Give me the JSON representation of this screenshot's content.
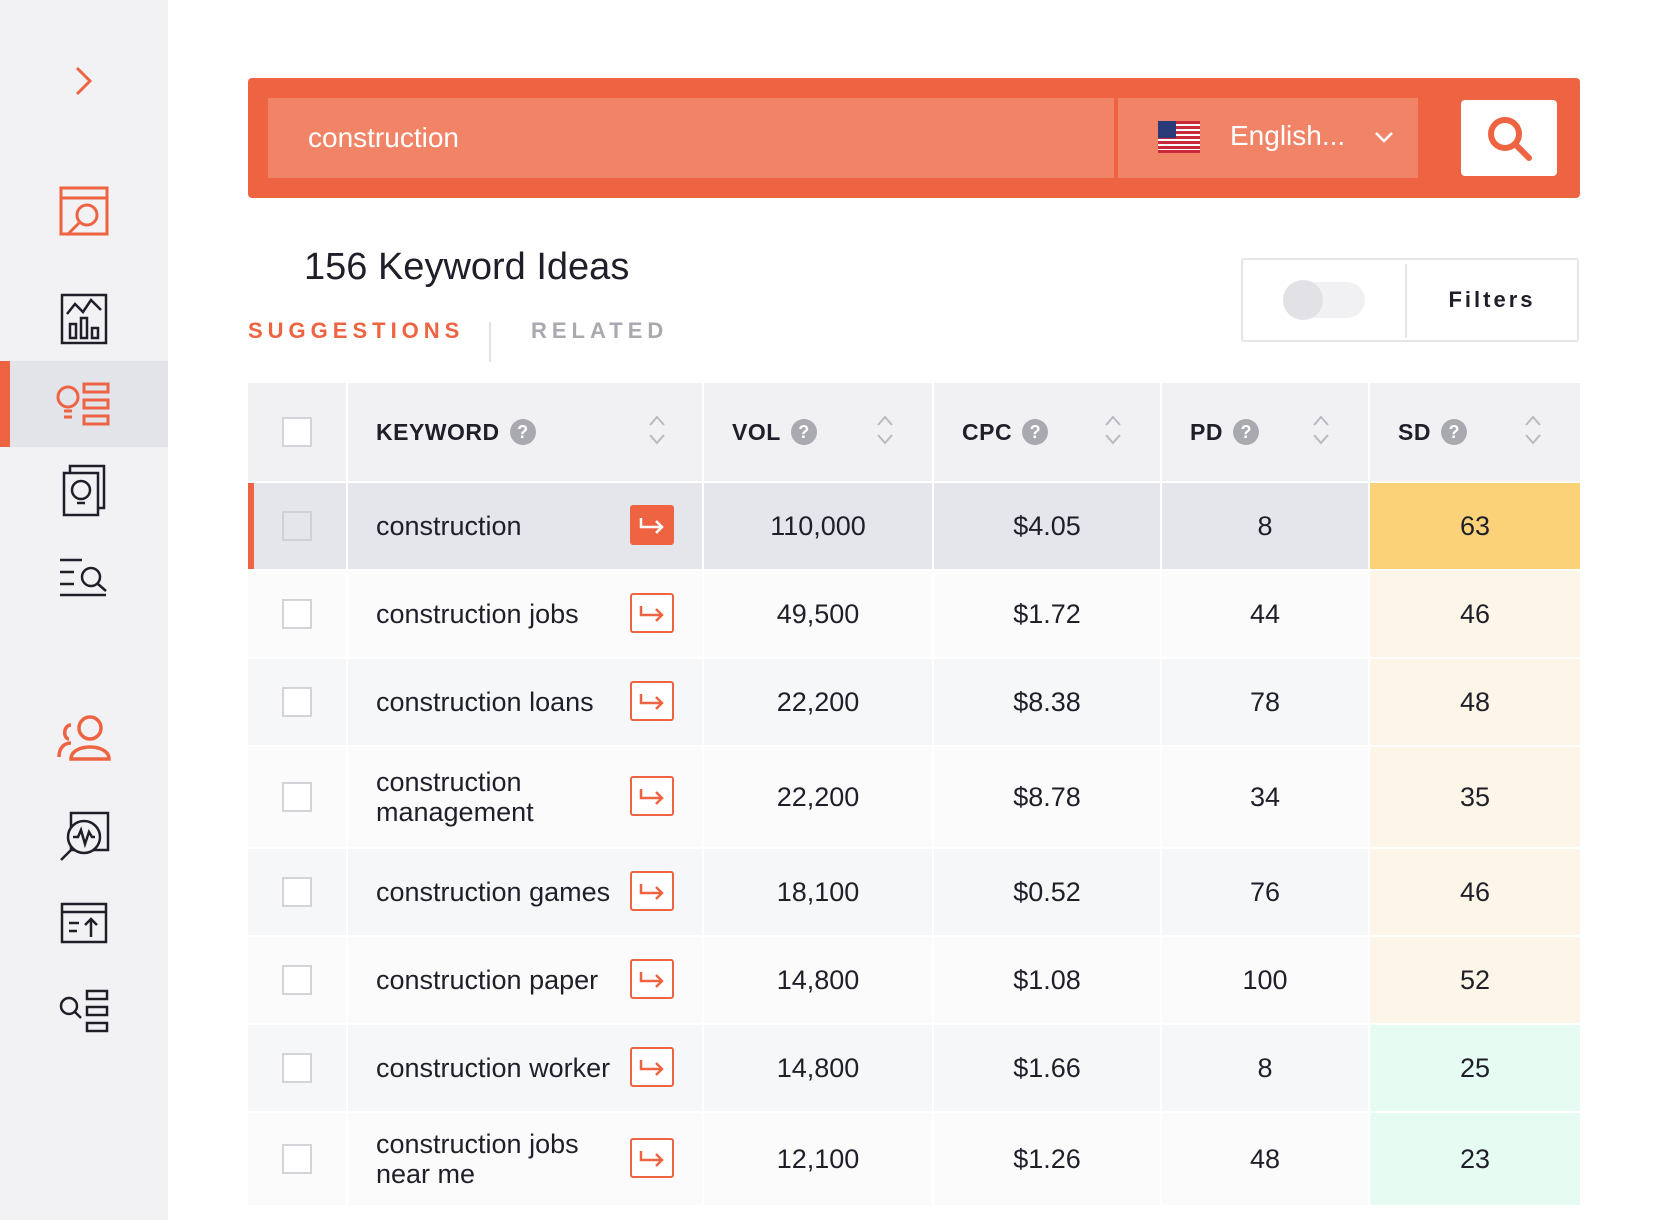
{
  "sidebar": {
    "expand_icon": "chevron-right-icon",
    "items": [
      {
        "name": "serp-analyzer",
        "icon": "browser-search-icon",
        "active": false
      },
      {
        "name": "analytics",
        "icon": "bar-chart-icon",
        "active": false
      },
      {
        "name": "keyword-ideas",
        "icon": "lightbulb-list-icon",
        "active": true
      },
      {
        "name": "content-ideas",
        "icon": "lightbulb-page-icon",
        "active": false
      },
      {
        "name": "keyword-search",
        "icon": "list-search-icon",
        "active": false
      },
      {
        "name": "account",
        "icon": "users-icon",
        "active": false
      },
      {
        "name": "site-audit",
        "icon": "pulse-search-icon",
        "active": false
      },
      {
        "name": "rank-tracker",
        "icon": "upload-window-icon",
        "active": false
      },
      {
        "name": "keyword-lists",
        "icon": "search-list-icon",
        "active": false
      }
    ]
  },
  "search": {
    "query": "construction",
    "language": "English...",
    "flag": "us-flag-icon",
    "button_icon": "search-icon"
  },
  "header": {
    "title": "156 Keyword Ideas",
    "tabs": [
      "SUGGESTIONS",
      "RELATED"
    ],
    "active_tab": "SUGGESTIONS",
    "filters_label": "Filters",
    "toggle_on": false
  },
  "table": {
    "columns": [
      "KEYWORD",
      "VOL",
      "CPC",
      "PD",
      "SD"
    ],
    "help_glyph": "?",
    "rows": [
      {
        "keyword": "construction",
        "vol": "110,000",
        "cpc": "$4.05",
        "pd": "8",
        "sd": "63",
        "sd_color": "#fbd277"
      },
      {
        "keyword": "construction jobs",
        "vol": "49,500",
        "cpc": "$1.72",
        "pd": "44",
        "sd": "46",
        "sd_color": "#fdf6e8"
      },
      {
        "keyword": "construction loans",
        "vol": "22,200",
        "cpc": "$8.38",
        "pd": "78",
        "sd": "48",
        "sd_color": "#fdf6e8"
      },
      {
        "keyword": "construction management",
        "vol": "22,200",
        "cpc": "$8.78",
        "pd": "34",
        "sd": "35",
        "sd_color": "#fdf6e8"
      },
      {
        "keyword": "construction games",
        "vol": "18,100",
        "cpc": "$0.52",
        "pd": "76",
        "sd": "46",
        "sd_color": "#fdf6e8"
      },
      {
        "keyword": "construction paper",
        "vol": "14,800",
        "cpc": "$1.08",
        "pd": "100",
        "sd": "52",
        "sd_color": "#fdf6e8"
      },
      {
        "keyword": "construction worker",
        "vol": "14,800",
        "cpc": "$1.66",
        "pd": "8",
        "sd": "25",
        "sd_color": "#e6fbf1"
      },
      {
        "keyword": "construction jobs near me",
        "vol": "12,100",
        "cpc": "$1.26",
        "pd": "48",
        "sd": "23",
        "sd_color": "#e6fbf1"
      }
    ]
  },
  "colors": {
    "accent": "#ee6442",
    "accent_light": "#f18466",
    "sidebar_bg": "#f2f2f4"
  }
}
